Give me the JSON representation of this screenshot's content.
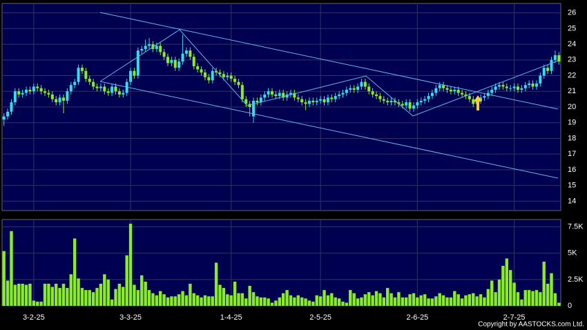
{
  "chart_data": [
    {
      "type": "candlestick",
      "ylim": [
        13.4,
        26.6
      ],
      "yticks": [
        14,
        15,
        16,
        17,
        18,
        19,
        20,
        21,
        22,
        23,
        24,
        25,
        26
      ],
      "grid": true,
      "up_color": "#33ddee",
      "down_color": "#88ee22",
      "open": [
        19.2,
        19.4,
        19.7,
        20.3,
        21.0,
        20.8,
        20.9,
        21.1,
        21.0,
        21.3,
        21.2,
        21.0,
        20.9,
        20.8,
        20.5,
        20.3,
        20.6,
        20.4,
        21.0,
        21.4,
        21.6,
        22.5,
        22.3,
        21.8,
        21.6,
        21.3,
        21.2,
        21.3,
        21.0,
        20.9,
        21.3,
        21.0,
        20.8,
        20.9,
        21.6,
        22.3,
        22.0,
        23.6,
        23.7,
        23.9,
        24.0,
        23.7,
        23.9,
        23.5,
        23.2,
        22.8,
        23.0,
        22.5,
        22.9,
        23.4,
        23.6,
        23.2,
        22.6,
        22.4,
        22.2,
        21.9,
        21.7,
        22.3,
        22.2,
        22.1,
        21.9,
        22.0,
        21.8,
        21.6,
        21.4,
        20.5,
        20.2,
        19.4,
        20.4,
        20.3,
        20.6,
        20.8,
        21.0,
        20.8,
        20.7,
        20.9,
        20.6,
        20.8,
        20.9,
        20.6,
        20.5,
        20.3,
        20.2,
        20.4,
        20.3,
        20.4,
        20.5,
        20.3,
        20.6,
        20.5,
        20.7,
        20.8,
        20.9,
        21.1,
        21.2,
        21.1,
        21.3,
        21.6,
        21.3,
        21.0,
        20.8,
        20.7,
        20.5,
        20.4,
        20.3,
        20.4,
        20.3,
        20.2,
        20.1,
        20.3,
        19.9,
        20.1,
        20.3,
        20.4,
        20.5,
        20.7,
        20.9,
        21.2,
        21.4,
        21.2,
        21.1,
        21.0,
        21.1,
        20.9,
        20.8,
        20.7,
        20.5,
        20.2,
        20.4,
        20.6,
        20.7,
        20.9,
        21.1,
        21.3,
        21.4,
        21.3,
        21.2,
        21.2,
        21.3,
        21.1,
        21.2,
        21.4,
        21.5,
        21.3,
        21.5,
        22.0,
        22.5,
        22.3,
        23.0,
        23.3
      ],
      "high": [
        19.6,
        19.9,
        20.5,
        21.2,
        21.2,
        21.1,
        21.3,
        21.3,
        21.5,
        21.5,
        21.4,
        21.2,
        21.1,
        21.0,
        20.7,
        20.8,
        20.8,
        21.2,
        21.6,
        21.8,
        22.7,
        22.7,
        22.5,
        22.0,
        21.8,
        21.5,
        21.5,
        21.5,
        21.2,
        21.5,
        21.5,
        21.2,
        21.1,
        21.8,
        22.5,
        22.5,
        23.8,
        23.9,
        24.3,
        24.4,
        24.2,
        24.1,
        24.1,
        23.7,
        23.4,
        23.2,
        23.2,
        23.1,
        24.6,
        23.8,
        23.8,
        23.4,
        22.8,
        22.6,
        22.4,
        22.1,
        22.5,
        22.5,
        22.4,
        22.3,
        22.2,
        22.2,
        22.0,
        21.8,
        21.6,
        20.7,
        20.4,
        20.6,
        20.6,
        20.8,
        21.0,
        21.2,
        21.2,
        21.0,
        21.1,
        21.1,
        21.0,
        21.1,
        21.1,
        20.8,
        20.7,
        20.5,
        20.6,
        20.6,
        20.6,
        20.7,
        20.7,
        20.8,
        20.8,
        20.9,
        21.0,
        21.1,
        21.3,
        21.4,
        21.4,
        21.5,
        21.8,
        21.8,
        21.5,
        21.2,
        21.0,
        20.9,
        20.7,
        20.6,
        20.6,
        20.6,
        20.5,
        20.4,
        20.5,
        20.5,
        20.3,
        20.5,
        20.6,
        20.7,
        20.9,
        21.1,
        21.4,
        21.6,
        21.6,
        21.4,
        21.3,
        21.3,
        21.3,
        21.1,
        21.0,
        20.9,
        20.7,
        20.6,
        20.8,
        20.9,
        21.1,
        21.3,
        21.5,
        21.6,
        21.6,
        21.5,
        21.4,
        21.5,
        21.5,
        21.4,
        21.6,
        21.7,
        21.7,
        21.7,
        22.2,
        22.7,
        22.7,
        23.2,
        23.6,
        23.5
      ],
      "low": [
        18.8,
        19.2,
        19.5,
        20.1,
        20.6,
        20.6,
        20.7,
        20.8,
        20.8,
        21.0,
        20.8,
        20.7,
        20.6,
        20.3,
        20.1,
        20.1,
        19.6,
        20.2,
        20.8,
        21.2,
        21.4,
        22.1,
        21.6,
        21.4,
        21.1,
        21.0,
        21.0,
        20.8,
        20.7,
        20.7,
        20.8,
        20.6,
        20.6,
        20.7,
        21.4,
        21.8,
        21.8,
        23.4,
        23.5,
        23.7,
        23.5,
        23.5,
        23.3,
        23.0,
        22.6,
        22.6,
        22.3,
        22.3,
        22.7,
        23.2,
        23.0,
        22.4,
        22.2,
        22.0,
        21.7,
        21.5,
        21.5,
        22.0,
        21.9,
        21.7,
        21.7,
        21.6,
        21.4,
        21.2,
        20.3,
        20.0,
        19.4,
        19.0,
        20.1,
        20.1,
        20.4,
        20.6,
        20.6,
        20.5,
        20.5,
        20.4,
        20.4,
        20.6,
        20.4,
        20.3,
        20.1,
        19.8,
        20.0,
        20.1,
        20.1,
        20.2,
        20.1,
        20.1,
        20.3,
        20.3,
        20.5,
        20.6,
        20.7,
        20.9,
        20.9,
        20.9,
        21.1,
        21.1,
        20.8,
        20.6,
        20.5,
        20.3,
        20.2,
        20.1,
        20.1,
        20.1,
        20.0,
        19.9,
        19.9,
        19.7,
        19.7,
        19.9,
        20.1,
        20.2,
        20.3,
        20.5,
        20.7,
        21.0,
        21.0,
        20.9,
        20.8,
        20.8,
        20.7,
        20.6,
        20.5,
        20.3,
        20.0,
        20.0,
        20.2,
        20.4,
        20.5,
        20.7,
        20.9,
        21.1,
        21.1,
        21.0,
        21.0,
        21.0,
        20.9,
        20.9,
        21.0,
        21.2,
        21.1,
        21.1,
        21.3,
        21.8,
        22.1,
        22.1,
        22.8,
        22.7
      ],
      "close": [
        19.4,
        19.7,
        20.3,
        21.0,
        20.8,
        20.9,
        21.1,
        21.0,
        21.3,
        21.2,
        21.0,
        20.9,
        20.8,
        20.5,
        20.3,
        20.6,
        20.4,
        21.0,
        21.4,
        21.6,
        22.5,
        22.3,
        21.8,
        21.6,
        21.3,
        21.2,
        21.3,
        21.0,
        20.9,
        21.3,
        21.0,
        20.8,
        20.9,
        21.6,
        22.3,
        22.0,
        23.6,
        23.7,
        23.9,
        24.0,
        23.7,
        23.9,
        23.5,
        23.2,
        22.8,
        23.0,
        22.5,
        22.9,
        23.4,
        23.6,
        23.2,
        22.6,
        22.4,
        22.2,
        21.9,
        21.7,
        22.3,
        22.2,
        22.1,
        21.9,
        22.0,
        21.8,
        21.6,
        21.4,
        20.5,
        20.2,
        20.0,
        20.4,
        20.3,
        20.6,
        20.8,
        21.0,
        20.8,
        20.7,
        20.9,
        20.6,
        20.8,
        20.9,
        20.6,
        20.5,
        20.3,
        20.2,
        20.4,
        20.3,
        20.4,
        20.5,
        20.3,
        20.6,
        20.5,
        20.7,
        20.8,
        20.9,
        21.1,
        21.2,
        21.1,
        21.3,
        21.6,
        21.3,
        21.0,
        20.8,
        20.7,
        20.5,
        20.4,
        20.3,
        20.4,
        20.3,
        20.2,
        20.1,
        20.3,
        19.9,
        20.1,
        20.3,
        20.4,
        20.5,
        20.7,
        20.9,
        21.2,
        21.4,
        21.2,
        21.1,
        21.0,
        21.1,
        20.9,
        20.8,
        20.7,
        20.5,
        20.2,
        20.4,
        20.6,
        20.7,
        20.9,
        21.1,
        21.3,
        21.4,
        21.3,
        21.2,
        21.2,
        21.3,
        21.1,
        21.2,
        21.4,
        21.5,
        21.3,
        21.5,
        22.0,
        22.5,
        22.3,
        23.0,
        23.3,
        22.9
      ]
    },
    {
      "type": "bar",
      "ylim": [
        0,
        8200
      ],
      "yticks": [
        0,
        {
          "value": 2500,
          "label": "2.5K"
        },
        {
          "value": 5000,
          "label": "5K"
        },
        {
          "value": 7500,
          "label": "7.5K"
        }
      ],
      "grid": true,
      "color": "#88ee22",
      "categories": [
        null,
        null,
        null,
        null,
        null,
        null,
        null,
        null,
        "3-2-25",
        null,
        null,
        null,
        null,
        null,
        null,
        null,
        null,
        null,
        null,
        null,
        null,
        null,
        null,
        null,
        null,
        null,
        null,
        null,
        null,
        null,
        null,
        null,
        null,
        null,
        "3-3-25",
        null,
        null,
        null,
        null,
        null,
        null,
        null,
        null,
        null,
        null,
        null,
        null,
        null,
        null,
        null,
        null,
        null,
        null,
        null,
        null,
        null,
        null,
        null,
        null,
        null,
        null,
        "1-4-25",
        null,
        null,
        null,
        null,
        null,
        null,
        null,
        null,
        null,
        null,
        null,
        null,
        null,
        null,
        null,
        null,
        null,
        null,
        null,
        null,
        null,
        null,
        null,
        "2-5-25",
        null,
        null,
        null,
        null,
        null,
        null,
        null,
        null,
        null,
        null,
        null,
        null,
        null,
        null,
        null,
        null,
        null,
        null,
        null,
        null,
        null,
        null,
        null,
        null,
        null,
        "2-6-25",
        null,
        null,
        null,
        null,
        null,
        null,
        null,
        null,
        null,
        null,
        null,
        null,
        null,
        null,
        null,
        null,
        null,
        null,
        null,
        null,
        null,
        null,
        null,
        null,
        null,
        "2-7-25",
        null,
        null,
        null,
        null,
        null,
        null,
        null,
        null,
        null,
        null,
        null,
        null
      ],
      "values": [
        5200,
        2400,
        7100,
        2000,
        2100,
        2100,
        2000,
        2100,
        500,
        400,
        400,
        2100,
        2100,
        1800,
        2100,
        1700,
        2100,
        1700,
        3000,
        6400,
        2600,
        1700,
        1500,
        1500,
        1300,
        1700,
        2100,
        3000,
        2500,
        600,
        1600,
        2100,
        1800,
        4800,
        7800,
        2000,
        1500,
        2900,
        2300,
        1500,
        1200,
        1000,
        1400,
        1100,
        800,
        900,
        900,
        1100,
        1400,
        1000,
        2100,
        1200,
        1000,
        800,
        1000,
        900,
        900,
        4100,
        2000,
        1700,
        1100,
        1000,
        2300,
        1200,
        1200,
        700,
        1900,
        1300,
        900,
        800,
        800,
        700,
        300,
        500,
        800,
        1200,
        1500,
        1000,
        800,
        1000,
        800,
        700,
        500,
        400,
        1000,
        900,
        1500,
        1000,
        1200,
        800,
        700,
        400,
        300,
        1500,
        1200,
        700,
        800,
        1100,
        1300,
        1000,
        1400,
        1200,
        800,
        1700,
        1200,
        800,
        1300,
        800,
        800,
        1100,
        1200,
        800,
        1000,
        1100,
        700,
        700,
        900,
        1200,
        1000,
        800,
        800,
        1400,
        1100,
        700,
        1000,
        1100,
        1200,
        900,
        1100,
        800,
        1600,
        2400,
        1300,
        2500,
        3800,
        4500,
        3400,
        2200,
        1300,
        600,
        1500,
        1500,
        1400,
        1500,
        1300,
        4200,
        2100,
        3100,
        1200,
        300
      ],
      "source": "Copyright by AASTOCKS.com Ltd."
    }
  ]
}
